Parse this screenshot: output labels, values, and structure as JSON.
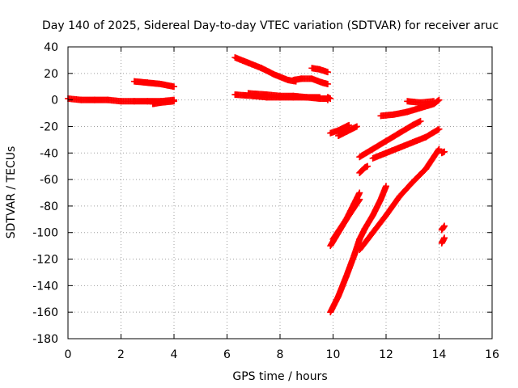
{
  "chart_data": {
    "type": "scatter",
    "title": "Day 140 of 2025, Sidereal Day-to-day VTEC variation (SDTVAR) for receiver aruc",
    "xlabel": "GPS time / hours",
    "ylabel": "SDTVAR / TECUs",
    "xlim": [
      0,
      16
    ],
    "ylim": [
      -180,
      40
    ],
    "xticks": [
      "0",
      "2",
      "4",
      "6",
      "8",
      "10",
      "12",
      "14",
      "16"
    ],
    "yticks": [
      "40",
      "20",
      "0",
      "-20",
      "-40",
      "-60",
      "-80",
      "-100",
      "-120",
      "-140",
      "-160",
      "-180"
    ],
    "grid": true,
    "marker": "plus",
    "color": "#ff0000",
    "tracks": [
      [
        [
          0,
          1
        ],
        [
          0.5,
          0
        ],
        [
          1.0,
          0
        ],
        [
          1.5,
          0
        ],
        [
          2.0,
          -1
        ],
        [
          2.5,
          -1
        ],
        [
          3.0,
          -1
        ],
        [
          3.5,
          -1
        ],
        [
          4.0,
          0
        ]
      ],
      [
        [
          2.5,
          14
        ],
        [
          3.0,
          13
        ],
        [
          3.5,
          12
        ],
        [
          4.0,
          10
        ]
      ],
      [
        [
          3.2,
          -3
        ],
        [
          3.5,
          -2
        ],
        [
          4.0,
          -1
        ]
      ],
      [
        [
          6.3,
          32
        ],
        [
          6.8,
          28
        ],
        [
          7.3,
          24
        ],
        [
          7.8,
          19
        ],
        [
          8.3,
          15
        ],
        [
          8.6,
          14
        ]
      ],
      [
        [
          6.3,
          4
        ],
        [
          7.0,
          3
        ],
        [
          7.5,
          2
        ],
        [
          8.0,
          2
        ],
        [
          8.5,
          2
        ],
        [
          9.0,
          2
        ],
        [
          9.5,
          1
        ],
        [
          9.8,
          1
        ]
      ],
      [
        [
          6.8,
          5
        ],
        [
          7.5,
          4
        ],
        [
          8.0,
          3
        ],
        [
          8.5,
          3
        ],
        [
          9.0,
          2
        ],
        [
          9.5,
          2
        ]
      ],
      [
        [
          8.5,
          15
        ],
        [
          8.8,
          16
        ],
        [
          9.2,
          16
        ],
        [
          9.6,
          13
        ],
        [
          9.8,
          12
        ]
      ],
      [
        [
          9.2,
          24
        ],
        [
          9.5,
          23
        ],
        [
          9.8,
          21
        ]
      ],
      [
        [
          9.8,
          0
        ],
        [
          9.8,
          2
        ],
        [
          9.9,
          1
        ]
      ],
      [
        [
          9.9,
          -25
        ],
        [
          10.2,
          -23
        ],
        [
          10.5,
          -20
        ],
        [
          10.6,
          -19
        ]
      ],
      [
        [
          10.2,
          -27
        ],
        [
          10.5,
          -24
        ],
        [
          10.9,
          -20
        ]
      ],
      [
        [
          11.0,
          -43
        ],
        [
          11.5,
          -37
        ],
        [
          12.0,
          -31
        ],
        [
          12.5,
          -25
        ],
        [
          13.0,
          -19
        ],
        [
          13.3,
          -16
        ]
      ],
      [
        [
          11.0,
          -55
        ],
        [
          11.2,
          -51
        ],
        [
          11.3,
          -50
        ]
      ],
      [
        [
          11.5,
          -44
        ],
        [
          12.0,
          -40
        ],
        [
          12.5,
          -36
        ],
        [
          13.0,
          -32
        ],
        [
          13.5,
          -28
        ],
        [
          14.0,
          -22
        ]
      ],
      [
        [
          11.8,
          -12
        ],
        [
          12.3,
          -11
        ],
        [
          12.8,
          -9
        ],
        [
          13.3,
          -6
        ],
        [
          13.8,
          -3
        ],
        [
          14.0,
          0
        ]
      ],
      [
        [
          12.8,
          -1
        ],
        [
          13.3,
          -2
        ],
        [
          13.8,
          -1
        ]
      ],
      [
        [
          9.9,
          -110
        ],
        [
          10.2,
          -100
        ],
        [
          10.5,
          -90
        ],
        [
          10.8,
          -78
        ],
        [
          11.0,
          -70
        ]
      ],
      [
        [
          10.0,
          -105
        ],
        [
          10.5,
          -90
        ],
        [
          11.0,
          -75
        ]
      ],
      [
        [
          9.9,
          -160
        ],
        [
          10.2,
          -148
        ],
        [
          10.5,
          -133
        ],
        [
          10.8,
          -117
        ],
        [
          11.0,
          -105
        ],
        [
          11.2,
          -97
        ],
        [
          11.5,
          -87
        ],
        [
          11.8,
          -75
        ],
        [
          12.0,
          -65
        ]
      ],
      [
        [
          11.0,
          -113
        ],
        [
          11.5,
          -100
        ],
        [
          12.0,
          -87
        ],
        [
          12.5,
          -73
        ],
        [
          13.0,
          -62
        ],
        [
          13.5,
          -52
        ],
        [
          14.0,
          -37
        ]
      ],
      [
        [
          14.1,
          -40
        ],
        [
          14.2,
          -39
        ]
      ],
      [
        [
          14.1,
          -98
        ],
        [
          14.2,
          -95
        ]
      ],
      [
        [
          14.1,
          -108
        ],
        [
          14.2,
          -104
        ]
      ]
    ]
  }
}
